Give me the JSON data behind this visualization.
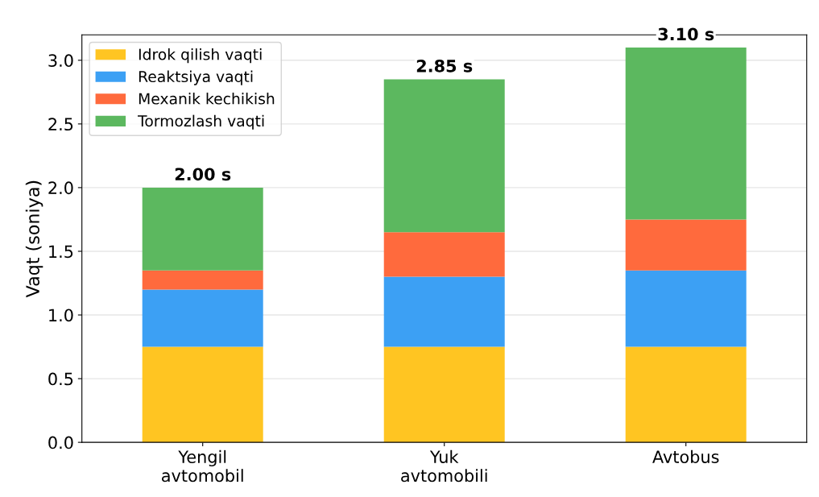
{
  "chart_data": {
    "type": "bar",
    "stacked": true,
    "ylabel": "Vaqt (soniya)",
    "categories": [
      "Yengil\navtomobil",
      "Yuk\navtomobili",
      "Avtobus"
    ],
    "series": [
      {
        "name": "Idrok qilish vaqti",
        "color": "#ffc522",
        "values": [
          0.75,
          0.75,
          0.75
        ]
      },
      {
        "name": "Reaktsiya vaqti",
        "color": "#3ca0f4",
        "values": [
          0.45,
          0.55,
          0.6
        ]
      },
      {
        "name": "Mexanik kechikish",
        "color": "#ff6a3d",
        "values": [
          0.15,
          0.35,
          0.4
        ]
      },
      {
        "name": "Tormozlash vaqti",
        "color": "#5cb85f",
        "values": [
          0.65,
          1.2,
          1.35
        ]
      }
    ],
    "totals": [
      "2.00 s",
      "2.85 s",
      "3.10 s"
    ],
    "ylim": [
      0,
      3.2
    ],
    "yticks": [
      {
        "value": 0,
        "label": "0.0"
      },
      0.5,
      {
        "value": 1,
        "label": "1.0"
      },
      1.5,
      {
        "value": 2,
        "label": "2.0"
      },
      2.5,
      {
        "value": 3,
        "label": "3.0"
      }
    ],
    "grid": "y",
    "legend": "top left"
  }
}
